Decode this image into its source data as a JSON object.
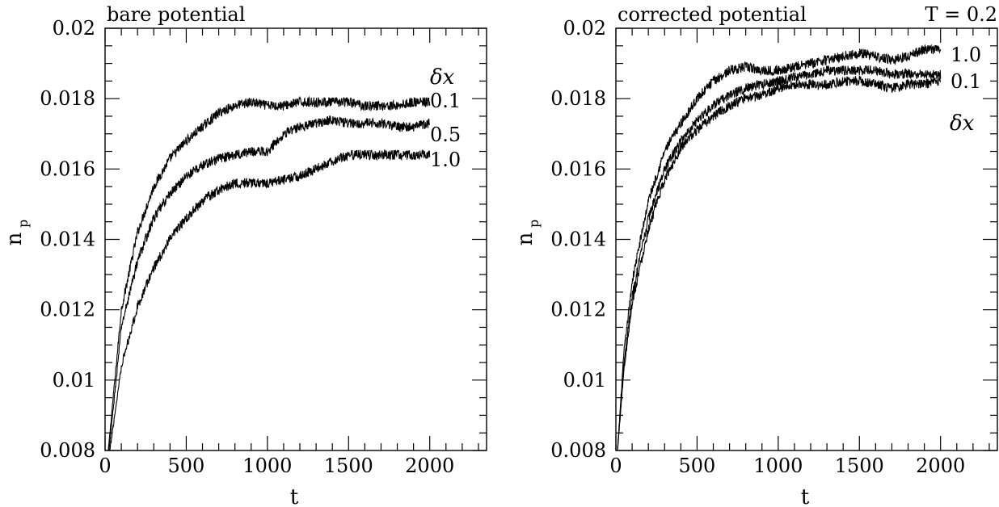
{
  "chart_data": [
    {
      "type": "line",
      "title": "bare potential",
      "xlabel": "t",
      "ylabel": "n",
      "ylabel_sub": "p",
      "xlim": [
        0,
        2350
      ],
      "ylim": [
        0.008,
        0.02
      ],
      "xticks": [
        0,
        500,
        1000,
        1500,
        2000
      ],
      "xtick_labels": [
        "0",
        "500",
        "1000",
        "1500",
        "2000"
      ],
      "yticks": [
        0.008,
        0.01,
        0.012,
        0.014,
        0.016,
        0.018,
        0.02
      ],
      "ytick_labels": [
        "0.008",
        "0.01",
        "0.012",
        "0.014",
        "0.016",
        "0.018",
        "0.02"
      ],
      "legend_header": "δx",
      "grid": false,
      "series": [
        {
          "name": "0.1",
          "t0": 15,
          "x": [
            20,
            100,
            200,
            300,
            400,
            500,
            600,
            700,
            800,
            900,
            1000,
            1100,
            1200,
            1300,
            1400,
            1500,
            1600,
            1700,
            1800,
            1900,
            2000
          ],
          "y": [
            0.008,
            0.012,
            0.0142,
            0.0155,
            0.0163,
            0.0168,
            0.0172,
            0.0176,
            0.0178,
            0.0179,
            0.0178,
            0.0178,
            0.0179,
            0.0179,
            0.0179,
            0.0179,
            0.0178,
            0.0178,
            0.0178,
            0.0179,
            0.0179
          ]
        },
        {
          "name": "0.5",
          "t0": 20,
          "x": [
            25,
            100,
            200,
            300,
            400,
            500,
            600,
            700,
            800,
            900,
            1000,
            1100,
            1200,
            1300,
            1400,
            1500,
            1600,
            1700,
            1800,
            1900,
            2000
          ],
          "y": [
            0.008,
            0.0115,
            0.0134,
            0.0146,
            0.0153,
            0.0158,
            0.0161,
            0.0163,
            0.0164,
            0.0165,
            0.0165,
            0.017,
            0.0172,
            0.0173,
            0.0174,
            0.0173,
            0.0173,
            0.0173,
            0.0172,
            0.0172,
            0.0173
          ]
        },
        {
          "name": "1.0",
          "t0": 25,
          "x": [
            30,
            100,
            200,
            300,
            400,
            500,
            600,
            700,
            800,
            900,
            1000,
            1100,
            1200,
            1300,
            1400,
            1500,
            1600,
            1700,
            1800,
            1900,
            2000
          ],
          "y": [
            0.008,
            0.0104,
            0.0121,
            0.0132,
            0.014,
            0.0146,
            0.0151,
            0.0154,
            0.0156,
            0.0156,
            0.0156,
            0.0157,
            0.0158,
            0.016,
            0.0162,
            0.0164,
            0.0164,
            0.0164,
            0.0164,
            0.0164,
            0.0164
          ]
        }
      ]
    },
    {
      "type": "line",
      "title": "corrected potential",
      "annotation": "T = 0.2",
      "xlabel": "t",
      "ylabel": "n",
      "ylabel_sub": "p",
      "xlim": [
        0,
        2350
      ],
      "ylim": [
        0.008,
        0.02
      ],
      "xticks": [
        0,
        500,
        1000,
        1500,
        2000
      ],
      "xtick_labels": [
        "0",
        "500",
        "1000",
        "1500",
        "2000"
      ],
      "yticks": [
        0.008,
        0.01,
        0.012,
        0.014,
        0.016,
        0.018,
        0.02
      ],
      "ytick_labels": [
        "0.008",
        "0.01",
        "0.012",
        "0.014",
        "0.016",
        "0.018",
        "0.02"
      ],
      "legend_header": "δx",
      "grid": false,
      "series": [
        {
          "name": "1.0",
          "t0": 5,
          "x": [
            10,
            50,
            100,
            200,
            300,
            400,
            500,
            600,
            700,
            800,
            900,
            1000,
            1100,
            1200,
            1300,
            1400,
            1500,
            1600,
            1700,
            1800,
            1900,
            2000
          ],
          "y": [
            0.008,
            0.0108,
            0.0128,
            0.0151,
            0.0165,
            0.0173,
            0.018,
            0.0185,
            0.0188,
            0.0189,
            0.0188,
            0.0188,
            0.0189,
            0.019,
            0.0191,
            0.0192,
            0.0193,
            0.0192,
            0.0191,
            0.0192,
            0.0194,
            0.0194
          ]
        },
        {
          "name": "",
          "t0": 5,
          "x": [
            10,
            50,
            100,
            200,
            300,
            400,
            500,
            600,
            700,
            800,
            900,
            1000,
            1100,
            1200,
            1300,
            1400,
            1500,
            1600,
            1700,
            1800,
            1900,
            2000
          ],
          "y": [
            0.008,
            0.0105,
            0.0124,
            0.0146,
            0.016,
            0.0168,
            0.0174,
            0.0178,
            0.0181,
            0.0183,
            0.0184,
            0.0185,
            0.0186,
            0.0187,
            0.0188,
            0.0188,
            0.0188,
            0.0188,
            0.0187,
            0.0187,
            0.0187,
            0.0187
          ]
        },
        {
          "name": "0.1",
          "t0": 5,
          "x": [
            10,
            50,
            100,
            200,
            300,
            400,
            500,
            600,
            700,
            800,
            900,
            1000,
            1100,
            1200,
            1300,
            1400,
            1500,
            1600,
            1700,
            1800,
            1900,
            2000
          ],
          "y": [
            0.008,
            0.0103,
            0.0122,
            0.0143,
            0.0157,
            0.0166,
            0.0171,
            0.0175,
            0.0178,
            0.018,
            0.0181,
            0.0183,
            0.0184,
            0.0184,
            0.0184,
            0.0185,
            0.0185,
            0.0184,
            0.0183,
            0.0184,
            0.0184,
            0.0185
          ]
        }
      ]
    }
  ]
}
